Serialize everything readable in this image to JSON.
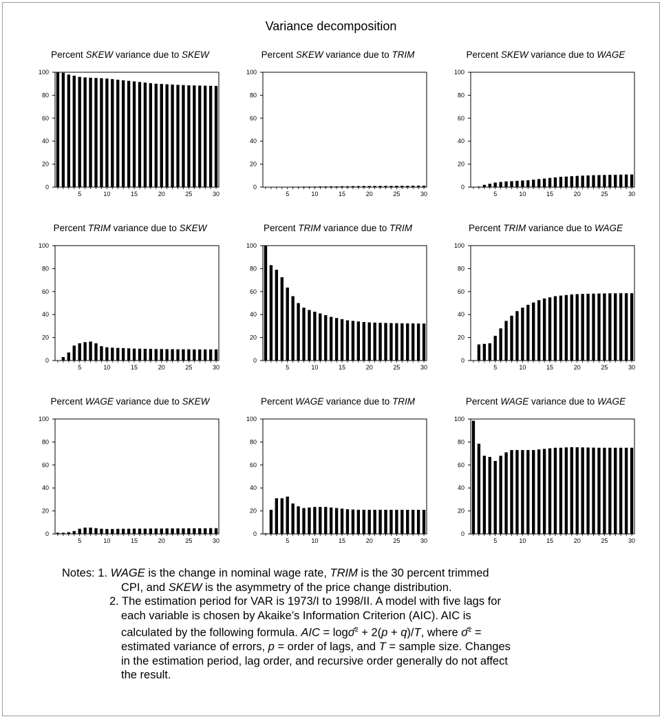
{
  "main_title": "Variance decomposition",
  "panel_titles": [
    {
      "prefix": "Percent ",
      "var": "SKEW",
      "mid": " variance due to ",
      "src": "SKEW"
    },
    {
      "prefix": "Percent ",
      "var": "SKEW",
      "mid": " variance due to ",
      "src": "TRIM"
    },
    {
      "prefix": "Percent ",
      "var": "SKEW",
      "mid": " variance due to ",
      "src": "WAGE"
    },
    {
      "prefix": "Percent ",
      "var": "TRIM",
      "mid": " variance due to ",
      "src": "SKEW"
    },
    {
      "prefix": "Percent ",
      "var": "TRIM",
      "mid": " variance due to ",
      "src": "TRIM"
    },
    {
      "prefix": "Percent ",
      "var": "TRIM",
      "mid": " variance due to ",
      "src": "WAGE"
    },
    {
      "prefix": "Percent ",
      "var": "WAGE",
      "mid": " variance due to ",
      "src": "SKEW"
    },
    {
      "prefix": "Percent ",
      "var": "WAGE",
      "mid": " variance due to ",
      "src": "TRIM"
    },
    {
      "prefix": "Percent ",
      "var": "WAGE",
      "mid": " variance due to ",
      "src": "WAGE"
    }
  ],
  "notes": {
    "n1_a": "Notes: 1. ",
    "n1_wage": "WAGE",
    "n1_b": " is the change in nominal wage rate, ",
    "n1_trim": "TRIM",
    "n1_c": " is the 30 percent trimmed",
    "n1_d": "CPI, and ",
    "n1_skew": "SKEW",
    "n1_e": " is the asymmetry of the price change distribution.",
    "n2_l1": "2. The estimation period for VAR is 1973/I to 1998/II. A model with five lags for",
    "n2_l2": "each variable is chosen by Akaike’s Information Criterion (AIC). AIC is",
    "n2_l3a": "calculated by the following formula. ",
    "n2_l3_aic": "AIC",
    "n2_l3b": " = log",
    "n2_l3_sig": "σ̂",
    "n2_l3_sq": "2",
    "n2_l3c": " + 2(",
    "n2_l3_p": "p",
    "n2_l3d": " + ",
    "n2_l3_q": "q",
    "n2_l3e": ")/",
    "n2_l3_T": "T",
    "n2_l3f": ", where ",
    "n2_l3g": " =",
    "n2_l4a": "estimated variance of errors, ",
    "n2_l4_p": "p",
    "n2_l4b": " = order of lags, and ",
    "n2_l4_T": "T",
    "n2_l4c": " = sample size. Changes",
    "n2_l5": "in the estimation period, lag order, and recursive order generally do not affect",
    "n2_l6": "the result."
  },
  "chart_data": [
    {
      "type": "bar",
      "title": "Percent SKEW variance due to SKEW",
      "xticks": [
        "5",
        "10",
        "15",
        "20",
        "25",
        "30"
      ],
      "ylim": [
        0,
        100
      ],
      "yticks": [
        "0",
        "20",
        "40",
        "60",
        "80",
        "100"
      ],
      "x": [
        1,
        2,
        3,
        4,
        5,
        6,
        7,
        8,
        9,
        10,
        11,
        12,
        13,
        14,
        15,
        16,
        17,
        18,
        19,
        20,
        21,
        22,
        23,
        24,
        25,
        26,
        27,
        28,
        29,
        30
      ],
      "values": [
        100,
        99.5,
        98,
        97,
        96,
        95.5,
        95.2,
        95,
        94.8,
        94.5,
        94,
        93.5,
        93,
        92.5,
        92,
        91.5,
        91,
        90.5,
        90,
        89.8,
        89.5,
        89.3,
        89,
        88.8,
        88.6,
        88.5,
        88.4,
        88.3,
        88.2,
        88.1
      ]
    },
    {
      "type": "bar",
      "title": "Percent SKEW variance due to TRIM",
      "xticks": [
        "5",
        "10",
        "15",
        "20",
        "25",
        "30"
      ],
      "ylim": [
        0,
        100
      ],
      "yticks": [
        "0",
        "20",
        "40",
        "60",
        "80",
        "100"
      ],
      "x": [
        1,
        2,
        3,
        4,
        5,
        6,
        7,
        8,
        9,
        10,
        11,
        12,
        13,
        14,
        15,
        16,
        17,
        18,
        19,
        20,
        21,
        22,
        23,
        24,
        25,
        26,
        27,
        28,
        29,
        30
      ],
      "values": [
        0,
        0.1,
        0.2,
        0.3,
        0.3,
        0.4,
        0.4,
        0.5,
        0.5,
        0.5,
        0.6,
        0.6,
        0.7,
        0.7,
        0.8,
        0.8,
        0.9,
        0.9,
        1,
        1,
        1,
        1.1,
        1.1,
        1.1,
        1.2,
        1.2,
        1.2,
        1.3,
        1.3,
        1.3
      ]
    },
    {
      "type": "bar",
      "title": "Percent SKEW variance due to WAGE",
      "xticks": [
        "5",
        "10",
        "15",
        "20",
        "25",
        "30"
      ],
      "ylim": [
        0,
        100
      ],
      "yticks": [
        "0",
        "20",
        "40",
        "60",
        "80",
        "100"
      ],
      "x": [
        1,
        2,
        3,
        4,
        5,
        6,
        7,
        8,
        9,
        10,
        11,
        12,
        13,
        14,
        15,
        16,
        17,
        18,
        19,
        20,
        21,
        22,
        23,
        24,
        25,
        26,
        27,
        28,
        29,
        30
      ],
      "values": [
        0,
        0.5,
        2,
        3,
        4,
        4.5,
        5,
        5.2,
        5.5,
        5.8,
        6,
        6.5,
        7,
        7.5,
        8,
        8.5,
        9,
        9.2,
        9.5,
        9.8,
        10,
        10.2,
        10.4,
        10.5,
        10.6,
        10.7,
        10.8,
        10.9,
        11,
        11
      ]
    },
    {
      "type": "bar",
      "title": "Percent TRIM variance due to SKEW",
      "xticks": [
        "5",
        "10",
        "15",
        "20",
        "25",
        "30"
      ],
      "ylim": [
        0,
        100
      ],
      "yticks": [
        "0",
        "20",
        "40",
        "60",
        "80",
        "100"
      ],
      "x": [
        1,
        2,
        3,
        4,
        5,
        6,
        7,
        8,
        9,
        10,
        11,
        12,
        13,
        14,
        15,
        16,
        17,
        18,
        19,
        20,
        21,
        22,
        23,
        24,
        25,
        26,
        27,
        28,
        29,
        30
      ],
      "values": [
        0,
        3,
        7,
        13,
        15,
        16,
        16.5,
        15,
        12.5,
        11.5,
        11.2,
        11,
        10.8,
        10.6,
        10.4,
        10.3,
        10.2,
        10.1,
        10,
        10,
        9.9,
        9.9,
        9.8,
        9.8,
        9.8,
        9.7,
        9.7,
        9.7,
        9.7,
        9.7
      ]
    },
    {
      "type": "bar",
      "title": "Percent TRIM variance due to TRIM",
      "xticks": [
        "5",
        "10",
        "15",
        "20",
        "25",
        "30"
      ],
      "ylim": [
        0,
        100
      ],
      "yticks": [
        "0",
        "20",
        "40",
        "60",
        "80",
        "100"
      ],
      "x": [
        1,
        2,
        3,
        4,
        5,
        6,
        7,
        8,
        9,
        10,
        11,
        12,
        13,
        14,
        15,
        16,
        17,
        18,
        19,
        20,
        21,
        22,
        23,
        24,
        25,
        26,
        27,
        28,
        29,
        30
      ],
      "values": [
        100,
        83,
        79,
        72.5,
        63.5,
        56,
        50,
        46,
        44,
        42.5,
        41,
        39.5,
        38,
        37,
        36,
        35,
        34.5,
        34,
        33.5,
        33.2,
        33,
        32.8,
        32.7,
        32.6,
        32.5,
        32.4,
        32.3,
        32.3,
        32.2,
        32.2
      ]
    },
    {
      "type": "bar",
      "title": "Percent TRIM variance due to WAGE",
      "xticks": [
        "5",
        "10",
        "15",
        "20",
        "25",
        "30"
      ],
      "ylim": [
        0,
        100
      ],
      "yticks": [
        "0",
        "20",
        "40",
        "60",
        "80",
        "100"
      ],
      "x": [
        1,
        2,
        3,
        4,
        5,
        6,
        7,
        8,
        9,
        10,
        11,
        12,
        13,
        14,
        15,
        16,
        17,
        18,
        19,
        20,
        21,
        22,
        23,
        24,
        25,
        26,
        27,
        28,
        29,
        30
      ],
      "values": [
        0,
        14,
        14.5,
        15,
        21.5,
        28,
        34.5,
        39,
        43,
        46,
        48.5,
        50.5,
        52.5,
        54,
        55,
        56,
        56.5,
        57,
        57.5,
        57.8,
        58,
        58.1,
        58.2,
        58.3,
        58.4,
        58.5,
        58.5,
        58.6,
        58.6,
        58.6
      ]
    },
    {
      "type": "bar",
      "title": "Percent WAGE variance due to SKEW",
      "xticks": [
        "5",
        "10",
        "15",
        "20",
        "25",
        "30"
      ],
      "ylim": [
        0,
        100
      ],
      "yticks": [
        "0",
        "20",
        "40",
        "60",
        "80",
        "100"
      ],
      "x": [
        1,
        2,
        3,
        4,
        5,
        6,
        7,
        8,
        9,
        10,
        11,
        12,
        13,
        14,
        15,
        16,
        17,
        18,
        19,
        20,
        21,
        22,
        23,
        24,
        25,
        26,
        27,
        28,
        29,
        30
      ],
      "values": [
        1,
        1,
        1.5,
        2.5,
        4.5,
        5.5,
        5.5,
        5,
        4.5,
        4.3,
        4.3,
        4.4,
        4.5,
        4.5,
        4.6,
        4.6,
        4.6,
        4.7,
        4.7,
        4.7,
        4.8,
        4.8,
        4.8,
        4.8,
        4.9,
        4.9,
        4.9,
        4.9,
        5,
        5
      ]
    },
    {
      "type": "bar",
      "title": "Percent WAGE variance due to TRIM",
      "xticks": [
        "5",
        "10",
        "15",
        "20",
        "25",
        "30"
      ],
      "ylim": [
        0,
        100
      ],
      "yticks": [
        "0",
        "20",
        "40",
        "60",
        "80",
        "100"
      ],
      "x": [
        1,
        2,
        3,
        4,
        5,
        6,
        7,
        8,
        9,
        10,
        11,
        12,
        13,
        14,
        15,
        16,
        17,
        18,
        19,
        20,
        21,
        22,
        23,
        24,
        25,
        26,
        27,
        28,
        29,
        30
      ],
      "values": [
        0.5,
        21,
        31,
        31,
        32.5,
        26.5,
        24,
        22.5,
        23,
        23.5,
        23.5,
        23.5,
        23,
        22.5,
        22,
        21.5,
        21.2,
        21,
        21,
        21,
        21,
        21,
        21,
        21,
        21,
        21,
        21,
        21,
        21,
        21
      ]
    },
    {
      "type": "bar",
      "title": "Percent WAGE variance due to WAGE",
      "xticks": [
        "5",
        "10",
        "15",
        "20",
        "25",
        "30"
      ],
      "ylim": [
        0,
        100
      ],
      "yticks": [
        "0",
        "20",
        "40",
        "60",
        "80",
        "100"
      ],
      "x": [
        1,
        2,
        3,
        4,
        5,
        6,
        7,
        8,
        9,
        10,
        11,
        12,
        13,
        14,
        15,
        16,
        17,
        18,
        19,
        20,
        21,
        22,
        23,
        24,
        25,
        26,
        27,
        28,
        29,
        30
      ],
      "values": [
        98.5,
        78.5,
        68,
        67,
        63.5,
        68,
        71,
        73,
        73,
        73,
        73,
        73,
        73.5,
        74,
        74.5,
        75,
        75,
        75.3,
        75.5,
        75.4,
        75.3,
        75.2,
        75.1,
        75,
        75,
        75,
        75,
        75,
        75,
        75
      ]
    }
  ]
}
